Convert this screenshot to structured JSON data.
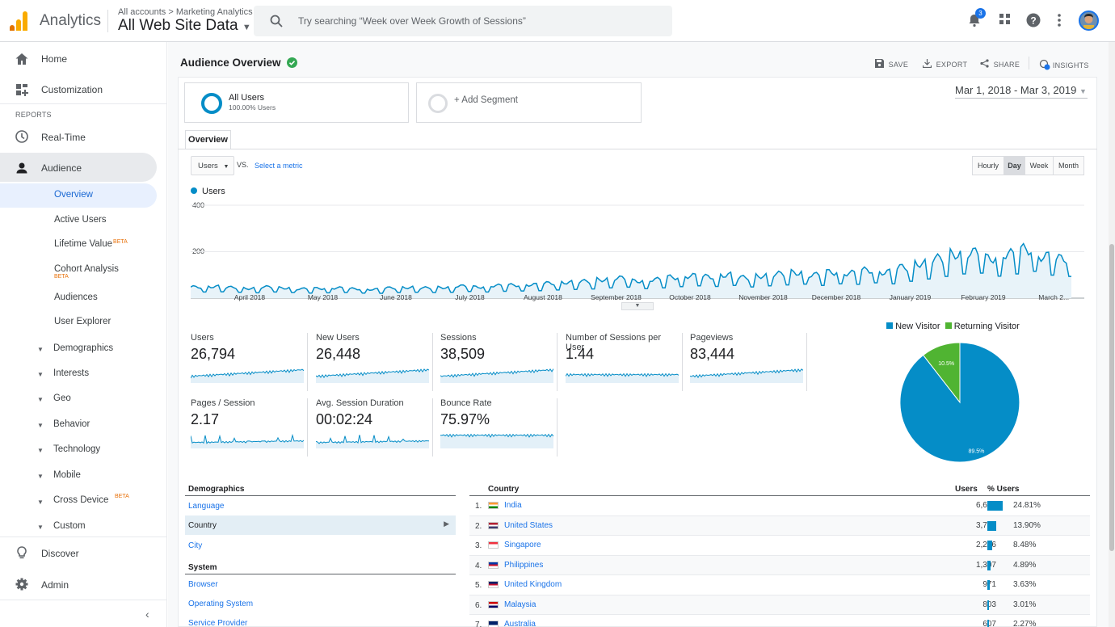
{
  "header": {
    "app_name": "Analytics",
    "breadcrumb": "All accounts > Marketing Analytics",
    "property": "All Web Site Data",
    "search_placeholder": "Try searching “Week over Week Growth of Sessions”",
    "notification_count": "3"
  },
  "sidebar": {
    "home": "Home",
    "customization": "Customization",
    "reports_label": "REPORTS",
    "realtime": "Real-Time",
    "audience": "Audience",
    "overview": "Overview",
    "active_users": "Active Users",
    "lifetime_value": "Lifetime Value",
    "cohort": "Cohort Analysis",
    "beta": "BETA",
    "audiences": "Audiences",
    "user_explorer": "User Explorer",
    "demographics": "Demographics",
    "interests": "Interests",
    "geo": "Geo",
    "behavior": "Behavior",
    "technology": "Technology",
    "mobile": "Mobile",
    "cross_device": "Cross Device",
    "custom": "Custom",
    "discover": "Discover",
    "admin": "Admin"
  },
  "page": {
    "title": "Audience Overview",
    "save": "SAVE",
    "export": "EXPORT",
    "share": "SHARE",
    "insights": "INSIGHTS",
    "segment_name": "All Users",
    "segment_pct": "100.00% Users",
    "add_segment": "+ Add Segment",
    "date_range": "Mar 1, 2018 - Mar 3, 2019",
    "tab": "Overview",
    "metric_select": "Users",
    "vs": "VS.",
    "select_metric": "Select a metric",
    "granularity": [
      "Hourly",
      "Day",
      "Week",
      "Month"
    ]
  },
  "chart_data": [
    {
      "type": "line",
      "series": [
        {
          "name": "Users",
          "color": "#058dc7"
        }
      ],
      "y_ticks": [
        "400",
        "200"
      ],
      "ylim": [
        0,
        400
      ],
      "x_labels": [
        "April 2018",
        "May 2018",
        "June 2018",
        "July 2018",
        "August 2018",
        "September 2018",
        "October 2018",
        "November 2018",
        "December 2018",
        "January 2019",
        "February 2019",
        "March 2..."
      ],
      "x_label_fracs": [
        0.067,
        0.15,
        0.233,
        0.317,
        0.4,
        0.483,
        0.567,
        0.65,
        0.733,
        0.817,
        0.9,
        0.98
      ],
      "weekly_values": [
        48,
        50,
        46,
        42,
        48,
        44,
        40,
        42,
        44,
        40,
        38,
        44,
        46,
        44,
        46,
        52,
        48,
        54,
        56,
        58,
        64,
        68,
        72,
        80,
        86,
        74,
        80,
        90,
        96,
        92,
        100,
        88,
        96,
        104,
        110,
        100,
        112,
        108,
        120,
        112,
        132,
        150,
        170,
        190,
        196,
        172,
        190,
        210,
        180,
        170
      ]
    },
    {
      "type": "pie",
      "legend": [
        "New Visitor",
        "Returning Visitor"
      ],
      "colors": [
        "#058dc7",
        "#50b432"
      ],
      "values": [
        89.5,
        10.5
      ],
      "labels": [
        "89.5%",
        "10.5%"
      ]
    }
  ],
  "metrics": [
    {
      "label": "Users",
      "value": "26,794"
    },
    {
      "label": "New Users",
      "value": "26,448"
    },
    {
      "label": "Sessions",
      "value": "38,509"
    },
    {
      "label": "Number of Sessions per User",
      "value": "1.44"
    },
    {
      "label": "Pageviews",
      "value": "83,444"
    },
    {
      "label": "Pages / Session",
      "value": "2.17"
    },
    {
      "label": "Avg. Session Duration",
      "value": "00:02:24"
    },
    {
      "label": "Bounce Rate",
      "value": "75.97%"
    }
  ],
  "demographics": {
    "heading": "Demographics",
    "language": "Language",
    "country": "Country",
    "city": "City",
    "system_heading": "System",
    "browser": "Browser",
    "os": "Operating System",
    "provider": "Service Provider"
  },
  "country_table": {
    "col_country": "Country",
    "col_users": "Users",
    "col_pct": "% Users",
    "rows": [
      {
        "rank": "1.",
        "name": "India",
        "users": "6,628",
        "pct": "24.81%",
        "share": 24.81
      },
      {
        "rank": "2.",
        "name": "United States",
        "users": "3,712",
        "pct": "13.90%",
        "share": 13.9
      },
      {
        "rank": "3.",
        "name": "Singapore",
        "users": "2,266",
        "pct": "8.48%",
        "share": 8.48
      },
      {
        "rank": "4.",
        "name": "Philippines",
        "users": "1,307",
        "pct": "4.89%",
        "share": 4.89
      },
      {
        "rank": "5.",
        "name": "United Kingdom",
        "users": "971",
        "pct": "3.63%",
        "share": 3.63
      },
      {
        "rank": "6.",
        "name": "Malaysia",
        "users": "803",
        "pct": "3.01%",
        "share": 3.01
      },
      {
        "rank": "7.",
        "name": "Australia",
        "users": "607",
        "pct": "2.27%",
        "share": 2.27
      }
    ]
  }
}
